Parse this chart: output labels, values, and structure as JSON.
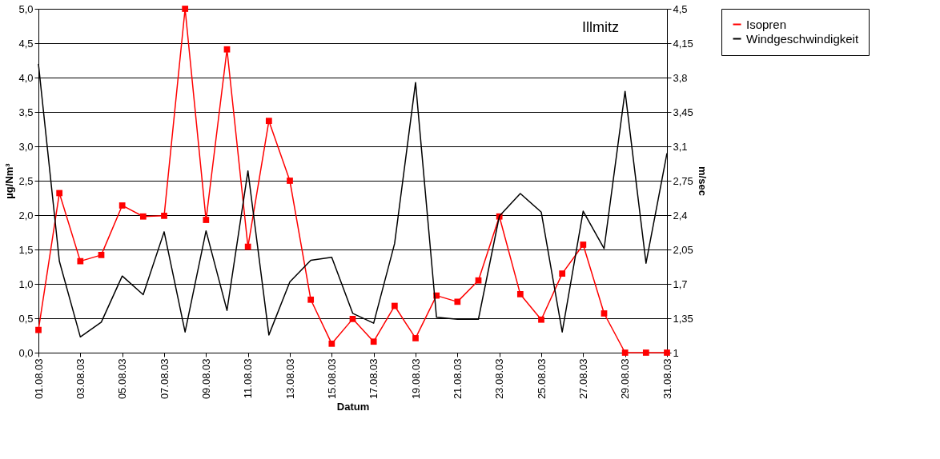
{
  "chart_data": {
    "type": "line",
    "xlabel": "Datum",
    "ylabel": "µg/Nm³",
    "y2label": "m/sec",
    "categories": [
      "01.08.03",
      null,
      "03.08.03",
      null,
      "05.08.03",
      null,
      "07.08.03",
      null,
      "09.08.03",
      null,
      "11.08.03",
      null,
      "13.08.03",
      null,
      "15.08.03",
      null,
      "17.08.03",
      null,
      "19.08.03",
      null,
      "21.08.03",
      null,
      "23.08.03",
      null,
      "25.08.03",
      null,
      "27.08.03",
      null,
      "29.08.03",
      null,
      "31.08.03"
    ],
    "series": [
      {
        "name": "Isopren",
        "color": "#ff0000",
        "marker": "square",
        "values": [
          0.33,
          2.32,
          1.33,
          1.42,
          2.14,
          1.98,
          1.99,
          5.0,
          1.93,
          4.41,
          1.54,
          3.37,
          2.5,
          0.77,
          0.13,
          0.49,
          0.16,
          0.68,
          0.21,
          0.83,
          0.74,
          1.05,
          1.98,
          0.85,
          0.48,
          1.15,
          1.57,
          0.57,
          0,
          0,
          0
        ]
      },
      {
        "name": "Windgeschwindigkeit",
        "color": "#000000",
        "axis": "y2",
        "marker": "none",
        "values": [
          3.94,
          1.93,
          1.16,
          1.31,
          1.78,
          1.59,
          2.23,
          1.21,
          2.24,
          1.43,
          2.85,
          1.18,
          1.72,
          1.94,
          1.97,
          1.4,
          1.3,
          2.11,
          3.75,
          1.36,
          1.34,
          1.34,
          2.39,
          2.62,
          2.43,
          1.21,
          2.44,
          2.06,
          3.66,
          1.91,
          3.03
        ]
      }
    ],
    "ylim": [
      0,
      5
    ],
    "yticks": [
      {
        "value": 0,
        "label": "0,0"
      },
      {
        "value": 0.5,
        "label": "0,5"
      },
      {
        "value": 1,
        "label": "1,0"
      },
      {
        "value": 1.5,
        "label": "1,5"
      },
      {
        "value": 2,
        "label": "2,0"
      },
      {
        "value": 2.5,
        "label": "2,5"
      },
      {
        "value": 3,
        "label": "3,0"
      },
      {
        "value": 3.5,
        "label": "3,5"
      },
      {
        "value": 4,
        "label": "4,0"
      },
      {
        "value": 4.5,
        "label": "4,5"
      },
      {
        "value": 5,
        "label": "5,0"
      }
    ],
    "y2lim": [
      1,
      4.5
    ],
    "y2ticks": [
      1,
      {
        "value": 1.35,
        "label": "1,35"
      },
      {
        "value": 1.7,
        "label": "1,7"
      },
      {
        "value": 2.05,
        "label": "2,05"
      },
      {
        "value": 2.4,
        "label": "2,4"
      },
      {
        "value": 2.75,
        "label": "2,75"
      },
      {
        "value": 3.1,
        "label": "3,1"
      },
      {
        "value": 3.45,
        "label": "3,45"
      },
      {
        "value": 3.8,
        "label": "3,8"
      },
      {
        "value": 4.15,
        "label": "4,15"
      },
      {
        "value": 4.5,
        "label": "4,5"
      }
    ],
    "annotations": [
      "Illmitz"
    ],
    "grid": "y",
    "legend": "right"
  }
}
